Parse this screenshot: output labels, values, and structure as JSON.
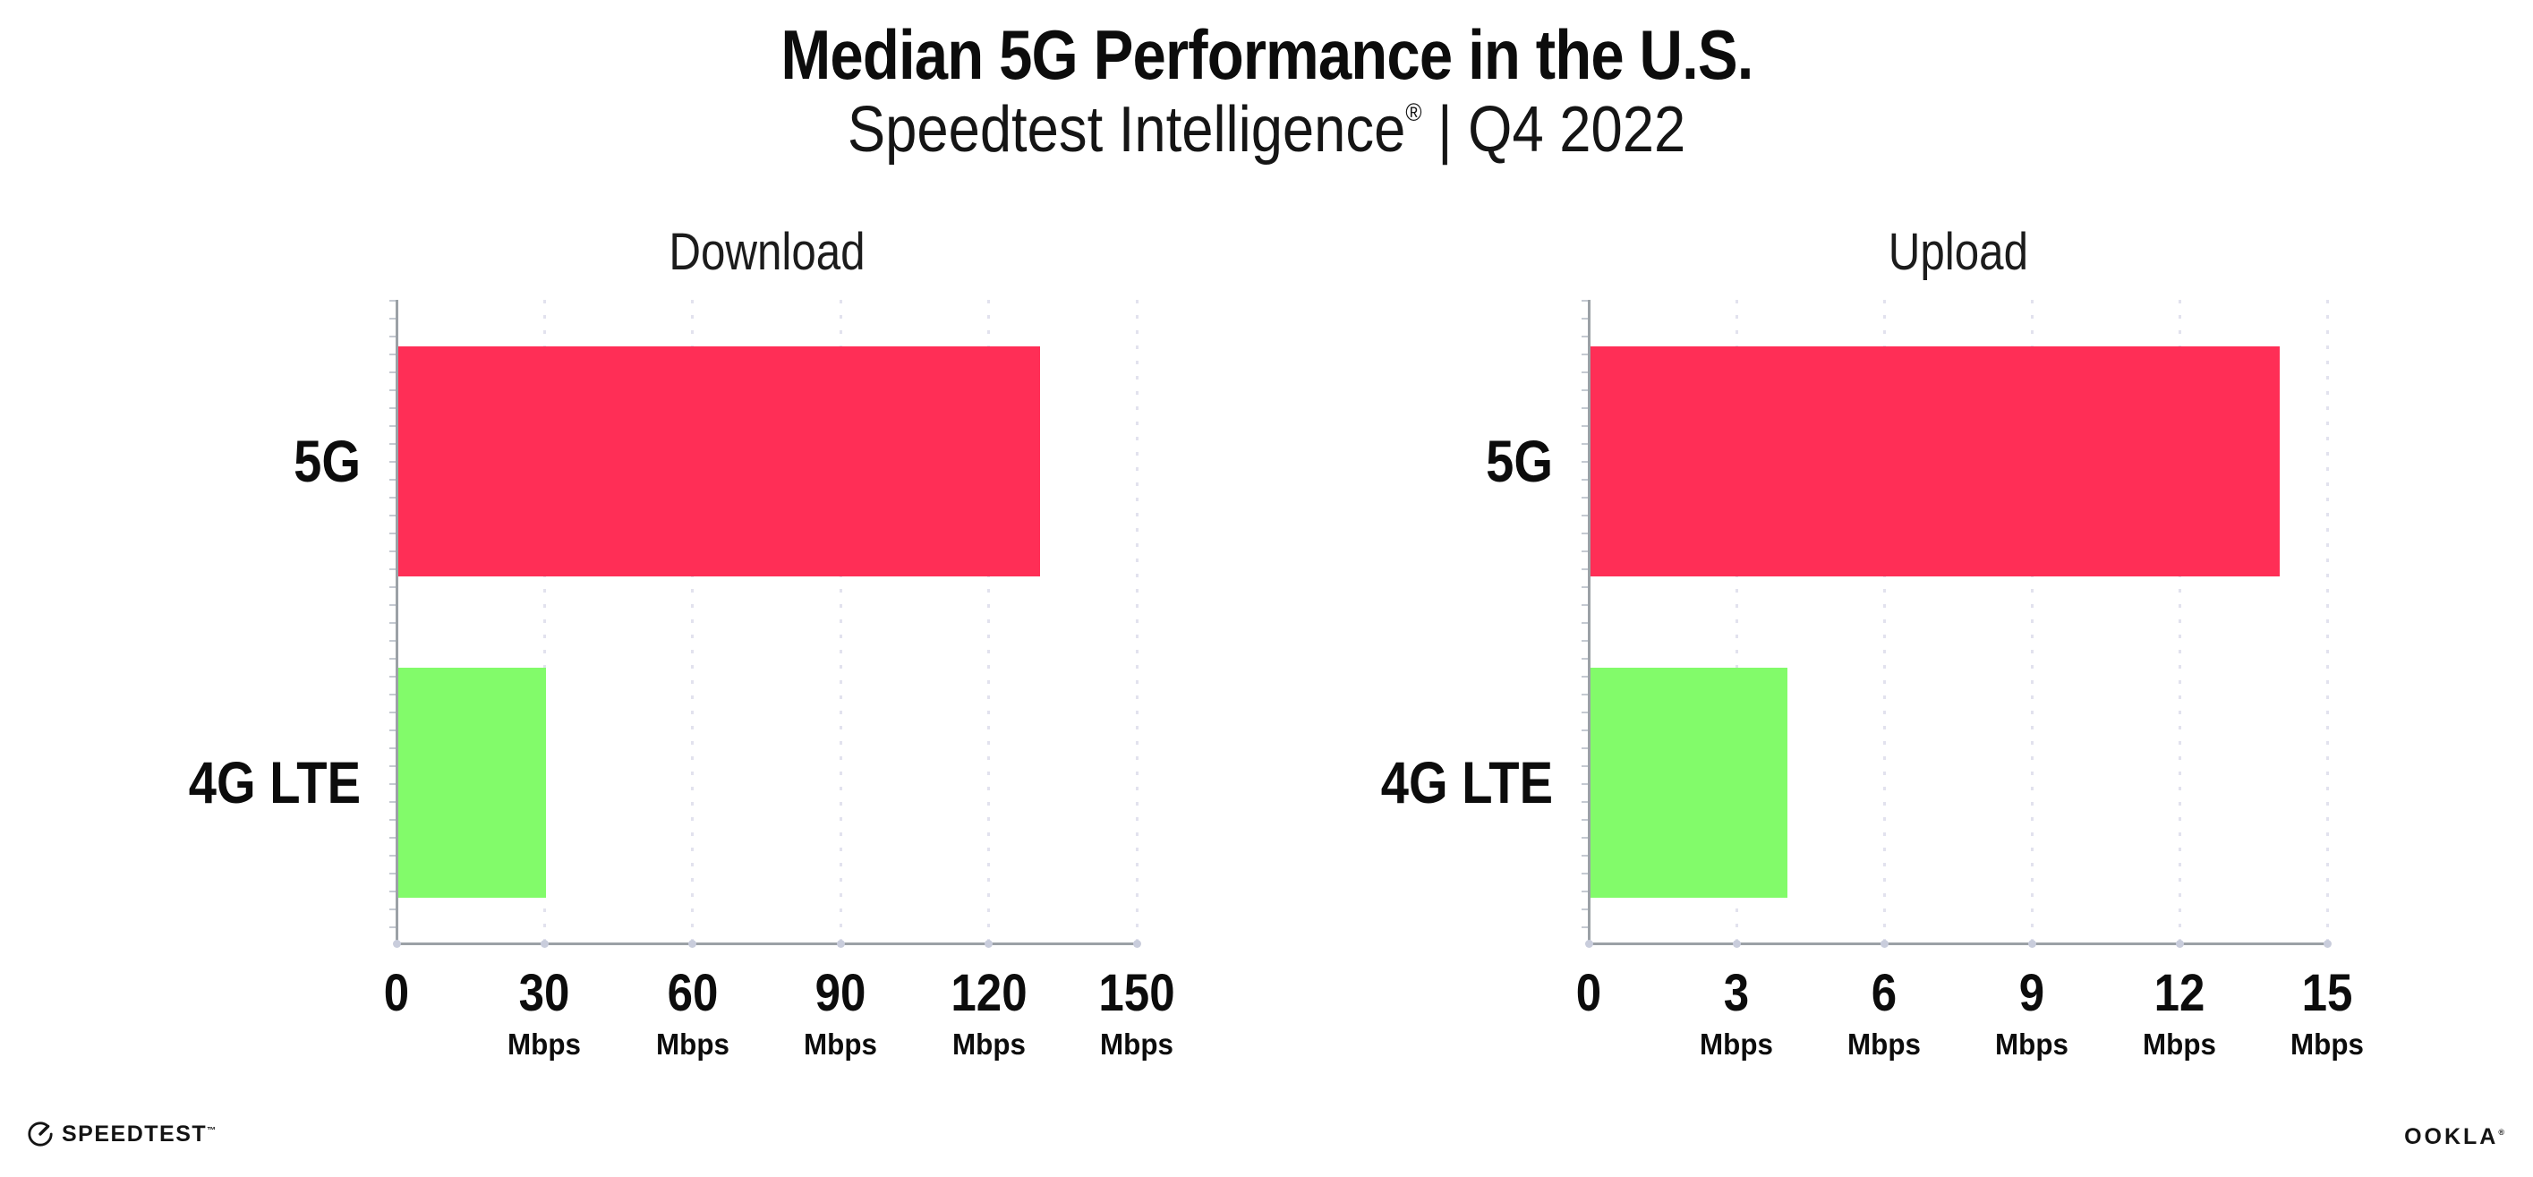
{
  "header": {
    "title": "Median 5G Performance in the U.S.",
    "subtitle_brand": "Speedtest Intelligence",
    "subtitle_reg": "®",
    "subtitle_sep": " | ",
    "subtitle_period": "Q4 2022"
  },
  "chart_data": [
    {
      "type": "bar",
      "orientation": "horizontal",
      "title": "Download",
      "categories": [
        "5G",
        "4G LTE"
      ],
      "values": [
        130,
        30
      ],
      "unit": "Mbps",
      "xlim": [
        0,
        150
      ],
      "xticks": [
        0,
        30,
        60,
        90,
        120,
        150
      ],
      "grid": "dotted-vertical",
      "legend": "none",
      "bar_colors": [
        "#FF2E56",
        "#82FB6A"
      ]
    },
    {
      "type": "bar",
      "orientation": "horizontal",
      "title": "Upload",
      "categories": [
        "5G",
        "4G LTE"
      ],
      "values": [
        14,
        4
      ],
      "unit": "Mbps",
      "xlim": [
        0,
        15
      ],
      "xticks": [
        0,
        3,
        6,
        9,
        12,
        15
      ],
      "grid": "dotted-vertical",
      "legend": "none",
      "bar_colors": [
        "#FF2E56",
        "#82FB6A"
      ]
    }
  ],
  "colors": {
    "bar_5g": "#FF2E56",
    "bar_4g": "#82FB6A",
    "axis": "#9BA1A6",
    "grid_dot": "#E2E2EE",
    "tick_dot": "#C9CDDC",
    "text": "#111111"
  },
  "footer": {
    "speedtest_label": "SPEEDTEST",
    "speedtest_tm": "™",
    "ookla_label": "OOKLA",
    "ookla_reg": "®"
  }
}
